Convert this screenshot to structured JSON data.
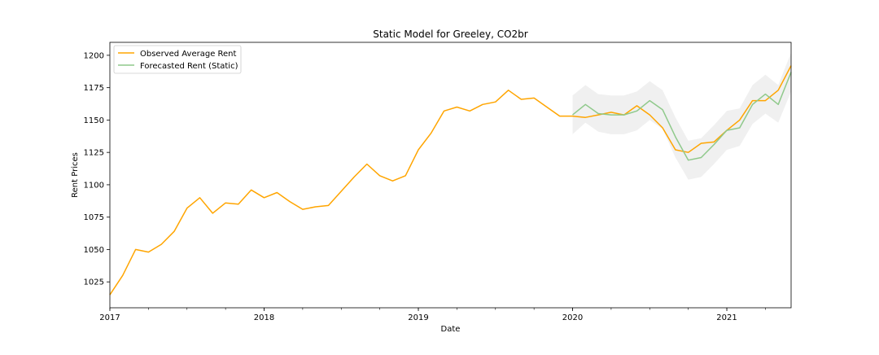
{
  "chart_data": {
    "type": "line",
    "title": "Static Model for Greeley, CO2br",
    "xlabel": "Date",
    "ylabel": "Rent Prices",
    "x_axis": {
      "type": "date",
      "range": [
        "2017-01",
        "2021-06"
      ],
      "major_ticks": [
        {
          "date": "2017-01",
          "label": "2017"
        },
        {
          "date": "2018-01",
          "label": "2018"
        },
        {
          "date": "2019-01",
          "label": "2019"
        },
        {
          "date": "2020-01",
          "label": "2020"
        },
        {
          "date": "2021-01",
          "label": "2021"
        }
      ],
      "minor_ticks": "quarterly"
    },
    "y_axis": {
      "range": [
        1005,
        1210
      ],
      "ticks": [
        1025,
        1050,
        1075,
        1100,
        1125,
        1150,
        1175,
        1200
      ]
    },
    "grid": false,
    "legend": {
      "position": "top-left",
      "entries": [
        "Observed Average Rent",
        "Forecasted Rent (Static)"
      ]
    },
    "series": [
      {
        "name": "Observed Average Rent",
        "color": "#ffa500",
        "x": [
          "2017-01",
          "2017-02",
          "2017-03",
          "2017-04",
          "2017-05",
          "2017-06",
          "2017-07",
          "2017-08",
          "2017-09",
          "2017-10",
          "2017-11",
          "2017-12",
          "2018-01",
          "2018-02",
          "2018-03",
          "2018-04",
          "2018-05",
          "2018-06",
          "2018-07",
          "2018-08",
          "2018-09",
          "2018-10",
          "2018-11",
          "2018-12",
          "2019-01",
          "2019-02",
          "2019-03",
          "2019-04",
          "2019-05",
          "2019-06",
          "2019-07",
          "2019-08",
          "2019-09",
          "2019-10",
          "2019-11",
          "2019-12",
          "2020-01",
          "2020-02",
          "2020-03",
          "2020-04",
          "2020-05",
          "2020-06",
          "2020-07",
          "2020-08",
          "2020-09",
          "2020-10",
          "2020-11",
          "2020-12",
          "2021-01",
          "2021-02",
          "2021-03",
          "2021-04",
          "2021-05",
          "2021-06"
        ],
        "values": [
          1015,
          1030,
          1050,
          1048,
          1054,
          1064,
          1082,
          1090,
          1078,
          1086,
          1085,
          1096,
          1090,
          1094,
          1087,
          1081,
          1083,
          1084,
          1095,
          1106,
          1116,
          1107,
          1103,
          1107,
          1127,
          1140,
          1157,
          1160,
          1157,
          1162,
          1164,
          1173,
          1166,
          1167,
          1160,
          1153,
          1153,
          1152,
          1154,
          1156,
          1154,
          1161,
          1154,
          1144,
          1127,
          1125,
          1132,
          1133,
          1142,
          1150,
          1165,
          1165,
          1173,
          1192
        ]
      },
      {
        "name": "Forecasted Rent (Static)",
        "color": "#8fc98b",
        "x": [
          "2020-01",
          "2020-02",
          "2020-03",
          "2020-04",
          "2020-05",
          "2020-06",
          "2020-07",
          "2020-08",
          "2020-09",
          "2020-10",
          "2020-11",
          "2020-12",
          "2021-01",
          "2021-02",
          "2021-03",
          "2021-04",
          "2021-05",
          "2021-06"
        ],
        "values": [
          1154,
          1162,
          1155,
          1154,
          1154,
          1157,
          1165,
          1158,
          1137,
          1119,
          1121,
          1131,
          1142,
          1144,
          1162,
          1170,
          1162,
          1187
        ],
        "ci_lower": [
          1139,
          1148,
          1141,
          1139,
          1139,
          1142,
          1150,
          1143,
          1121,
          1104,
          1106,
          1116,
          1127,
          1130,
          1147,
          1155,
          1148,
          1172
        ],
        "ci_upper": [
          1169,
          1177,
          1170,
          1169,
          1169,
          1172,
          1180,
          1173,
          1152,
          1134,
          1136,
          1146,
          1157,
          1159,
          1177,
          1185,
          1177,
          1202
        ]
      }
    ]
  }
}
